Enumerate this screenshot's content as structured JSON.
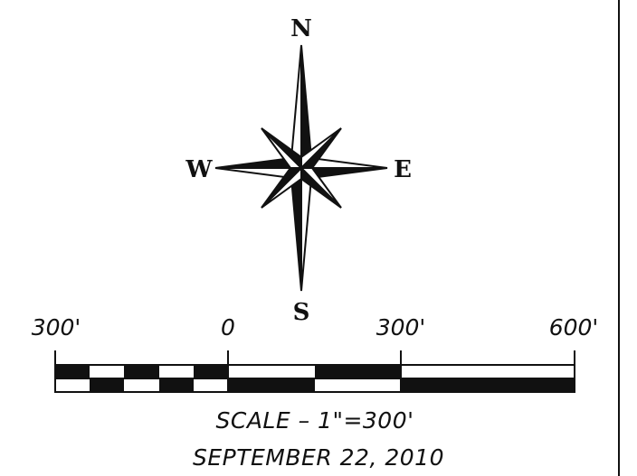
{
  "compass": {
    "north_label": "N",
    "south_label": "S",
    "east_label": "E",
    "west_label": "W",
    "icon": "compass-rose-icon"
  },
  "scale_bar": {
    "tick_labels": [
      "300'",
      "0",
      "300'",
      "600'"
    ],
    "fill_color": "#111111",
    "empty_color": "#ffffff"
  },
  "caption": {
    "scale_text": "SCALE – 1\"=300'",
    "date_text": "SEPTEMBER 22, 2010"
  }
}
